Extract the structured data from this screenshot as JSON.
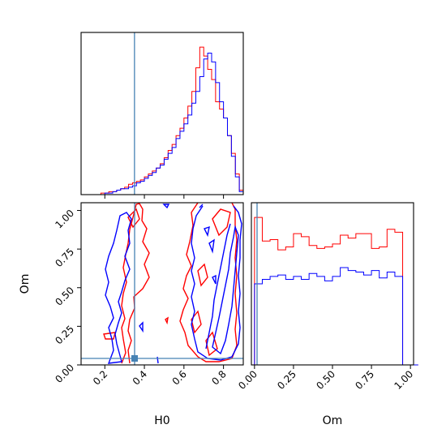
{
  "chart_data": {
    "type": "corner",
    "parameters": [
      "H0",
      "Om"
    ],
    "truth": {
      "H0": 0.35,
      "Om": 0.02
    },
    "truth_color": "#4682b4",
    "series": [
      {
        "color": "#ff0000"
      },
      {
        "color": "#0000ff"
      }
    ],
    "panels": [
      {
        "id": "hist-H0",
        "type": "histogram",
        "xlim": [
          0.08,
          0.9
        ],
        "xticks": [
          0.2,
          0.4,
          0.6,
          0.8
        ],
        "bins": [
          0.1,
          0.12,
          0.14,
          0.16,
          0.18,
          0.2,
          0.22,
          0.24,
          0.26,
          0.28,
          0.3,
          0.32,
          0.34,
          0.36,
          0.38,
          0.4,
          0.42,
          0.44,
          0.46,
          0.48,
          0.5,
          0.52,
          0.54,
          0.56,
          0.58,
          0.6,
          0.62,
          0.64,
          0.66,
          0.68,
          0.7,
          0.72,
          0.74,
          0.76,
          0.78,
          0.8,
          0.82,
          0.84,
          0.86,
          0.88
        ],
        "series_counts": [
          [
            0,
            0,
            0,
            0,
            1,
            1,
            2,
            2,
            3,
            4,
            5,
            7,
            8,
            9,
            10,
            12,
            14,
            16,
            18,
            21,
            25,
            30,
            34,
            40,
            45,
            52,
            60,
            70,
            86,
            100,
            94,
            85,
            78,
            63,
            58,
            52,
            40,
            28,
            14,
            3
          ],
          [
            0,
            0,
            0,
            0,
            0,
            1,
            1,
            2,
            3,
            4,
            4,
            5,
            6,
            8,
            9,
            11,
            13,
            15,
            18,
            20,
            24,
            28,
            32,
            38,
            43,
            48,
            54,
            62,
            70,
            80,
            92,
            96,
            90,
            76,
            63,
            52,
            40,
            26,
            12,
            2
          ]
        ]
      },
      {
        "id": "hist-Om",
        "type": "histogram",
        "xlim": [
          -0.02,
          1.02
        ],
        "xticks": [
          0.0,
          0.25,
          0.5,
          0.75,
          1.0
        ],
        "xticklabels": [
          "0.00",
          "0.25",
          "0.50",
          "0.75",
          "1.00"
        ],
        "bins": [
          0.0,
          0.05,
          0.1,
          0.15,
          0.2,
          0.25,
          0.3,
          0.35,
          0.4,
          0.45,
          0.5,
          0.55,
          0.6,
          0.65,
          0.7,
          0.75,
          0.8,
          0.85,
          0.9,
          0.95,
          1.0
        ],
        "series_counts": [
          [
            100,
            84,
            85,
            78,
            80,
            89,
            87,
            81,
            79,
            80,
            82,
            88,
            86,
            89,
            89,
            79,
            80,
            92,
            90,
            0
          ],
          [
            55,
            58,
            60,
            61,
            58,
            60,
            58,
            62,
            60,
            57,
            60,
            66,
            64,
            63,
            61,
            64,
            59,
            63,
            60,
            0
          ]
        ]
      },
      {
        "id": "scatter-H0-Om",
        "type": "contour",
        "xlim": [
          0.08,
          0.9
        ],
        "ylim": [
          0.0,
          1.05
        ],
        "xticks": [
          0.2,
          0.4,
          0.6,
          0.8
        ],
        "yticks": [
          0.0,
          0.25,
          0.5,
          0.75,
          1.0
        ],
        "yticklabels": [
          "0.00",
          "0.25",
          "0.50",
          "0.75",
          "1.00"
        ],
        "xlabel": "H0",
        "ylabel": "Om"
      }
    ]
  }
}
